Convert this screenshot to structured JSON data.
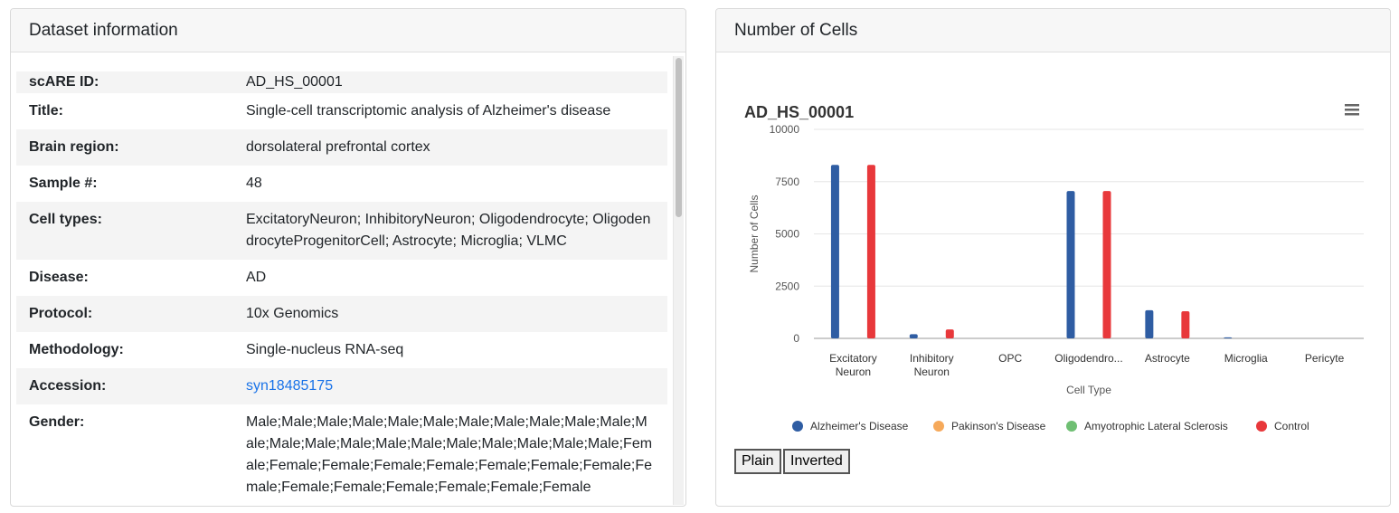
{
  "left_panel": {
    "title": "Dataset information",
    "rows": [
      {
        "label": "scARE ID:",
        "value": "AD_HS_00001"
      },
      {
        "label": "Title:",
        "value": "Single-cell transcriptomic analysis of Alzheimer's disease"
      },
      {
        "label": "Brain region:",
        "value": "dorsolateral prefrontal cortex"
      },
      {
        "label": "Sample #:",
        "value": "48"
      },
      {
        "label": "Cell types:",
        "value": "ExcitatoryNeuron; InhibitoryNeuron; Oligodendrocyte; OligodendrocyteProgenitorCell; Astrocyte; Microglia; VLMC"
      },
      {
        "label": "Disease:",
        "value": "AD"
      },
      {
        "label": "Protocol:",
        "value": "10x Genomics"
      },
      {
        "label": "Methodology:",
        "value": "Single-nucleus RNA-seq"
      },
      {
        "label": "Accession:",
        "value": "syn18485175"
      },
      {
        "label": "Gender:",
        "value": "Male;Male;Male;Male;Male;Male;Male;Male;Male;Male;Male;Male;Male;Male;Male;Male;Male;Male;Male;Male;Male;Male;Female;Female;Female;Female;Female;Female;Female;Female;Female;Female;Female;Female;Female;Female;Female"
      }
    ]
  },
  "right_panel": {
    "title": "Number of Cells",
    "buttons": {
      "plain": "Plain",
      "inverted": "Inverted"
    }
  },
  "chart_data": {
    "type": "bar",
    "title": "AD_HS_00001",
    "xlabel": "Cell Type",
    "ylabel": "Number of Cells",
    "ylim": [
      0,
      10000
    ],
    "yticks": [
      0,
      2500,
      5000,
      7500,
      10000
    ],
    "categories": [
      "Excitatory Neuron",
      "Inhibitory Neuron",
      "OPC",
      "Oligodendro...",
      "Astrocyte",
      "Microglia",
      "Pericyte"
    ],
    "series": [
      {
        "name": "Alzheimer's Disease",
        "color": "#2f5da3",
        "values": [
          8300,
          200,
          0,
          7050,
          1350,
          50,
          0
        ]
      },
      {
        "name": "Pakinson's Disease",
        "color": "#f6a95a",
        "values": [
          0,
          0,
          0,
          0,
          0,
          0,
          0
        ]
      },
      {
        "name": "Amyotrophic Lateral Sclerosis",
        "color": "#6fbf73",
        "values": [
          0,
          0,
          0,
          0,
          0,
          0,
          0
        ]
      },
      {
        "name": "Control",
        "color": "#e8383b",
        "values": [
          8300,
          430,
          0,
          7050,
          1300,
          0,
          0
        ]
      }
    ],
    "legend_position": "bottom",
    "grid": true
  }
}
